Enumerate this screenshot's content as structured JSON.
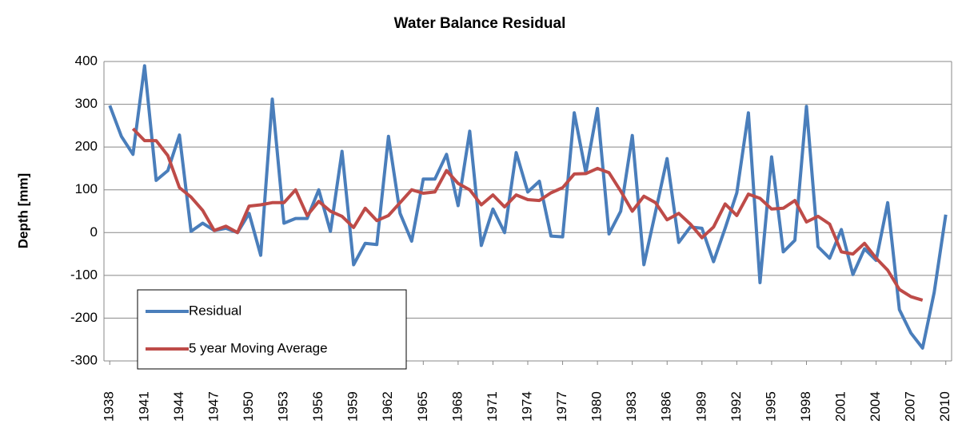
{
  "chart_data": {
    "type": "line",
    "title": "Water Balance Residual",
    "ylabel": "Depth [mm]",
    "x": [
      1938,
      1939,
      1940,
      1941,
      1942,
      1943,
      1944,
      1945,
      1946,
      1947,
      1948,
      1949,
      1950,
      1951,
      1952,
      1953,
      1954,
      1955,
      1956,
      1957,
      1958,
      1959,
      1960,
      1961,
      1962,
      1963,
      1964,
      1965,
      1966,
      1967,
      1968,
      1969,
      1970,
      1971,
      1972,
      1973,
      1974,
      1975,
      1976,
      1977,
      1978,
      1979,
      1980,
      1981,
      1982,
      1983,
      1984,
      1985,
      1986,
      1987,
      1988,
      1989,
      1990,
      1991,
      1992,
      1993,
      1994,
      1995,
      1996,
      1997,
      1998,
      1999,
      2000,
      2001,
      2002,
      2003,
      2004,
      2005,
      2006,
      2007,
      2008,
      2009,
      2010
    ],
    "series": [
      {
        "name": "Residual",
        "color": "#4a7ebb",
        "values": [
          297,
          225,
          183,
          390,
          122,
          145,
          228,
          3,
          22,
          5,
          10,
          0,
          45,
          -53,
          312,
          22,
          33,
          33,
          100,
          3,
          190,
          -75,
          -25,
          -28,
          225,
          45,
          -20,
          125,
          125,
          183,
          63,
          237,
          -30,
          55,
          0,
          187,
          95,
          120,
          -8,
          -10,
          280,
          140,
          290,
          -3,
          50,
          227,
          -75,
          48,
          173,
          -23,
          13,
          10,
          -68,
          10,
          93,
          280,
          -117,
          177,
          -45,
          -18,
          295,
          -33,
          -60,
          7,
          -98,
          -38,
          -65,
          70,
          -180,
          -235,
          -270,
          -140,
          42
        ]
      },
      {
        "name": "5 year Moving Average",
        "color": "#be4b48",
        "values": [
          null,
          null,
          243,
          215,
          215,
          180,
          105,
          83,
          52,
          5,
          15,
          0,
          62,
          65,
          70,
          70,
          100,
          40,
          73,
          50,
          38,
          12,
          57,
          28,
          40,
          70,
          100,
          92,
          95,
          145,
          115,
          100,
          65,
          88,
          60,
          88,
          77,
          75,
          93,
          105,
          137,
          138,
          150,
          140,
          97,
          50,
          85,
          70,
          30,
          45,
          20,
          -12,
          13,
          67,
          40,
          90,
          80,
          55,
          57,
          75,
          25,
          38,
          20,
          -45,
          -50,
          -25,
          -60,
          -88,
          -133,
          -150,
          -158,
          null,
          null
        ]
      }
    ],
    "xlim": [
      1937.5,
      2010.5
    ],
    "xticks": [
      1938,
      1941,
      1944,
      1947,
      1950,
      1953,
      1956,
      1959,
      1962,
      1965,
      1968,
      1971,
      1974,
      1977,
      1980,
      1983,
      1986,
      1989,
      1992,
      1995,
      1998,
      2001,
      2004,
      2007,
      2010
    ],
    "ylim": [
      -300,
      400
    ],
    "yticks": [
      -300,
      -200,
      -100,
      0,
      100,
      200,
      300,
      400
    ],
    "grid": true,
    "legend": "lower left"
  }
}
